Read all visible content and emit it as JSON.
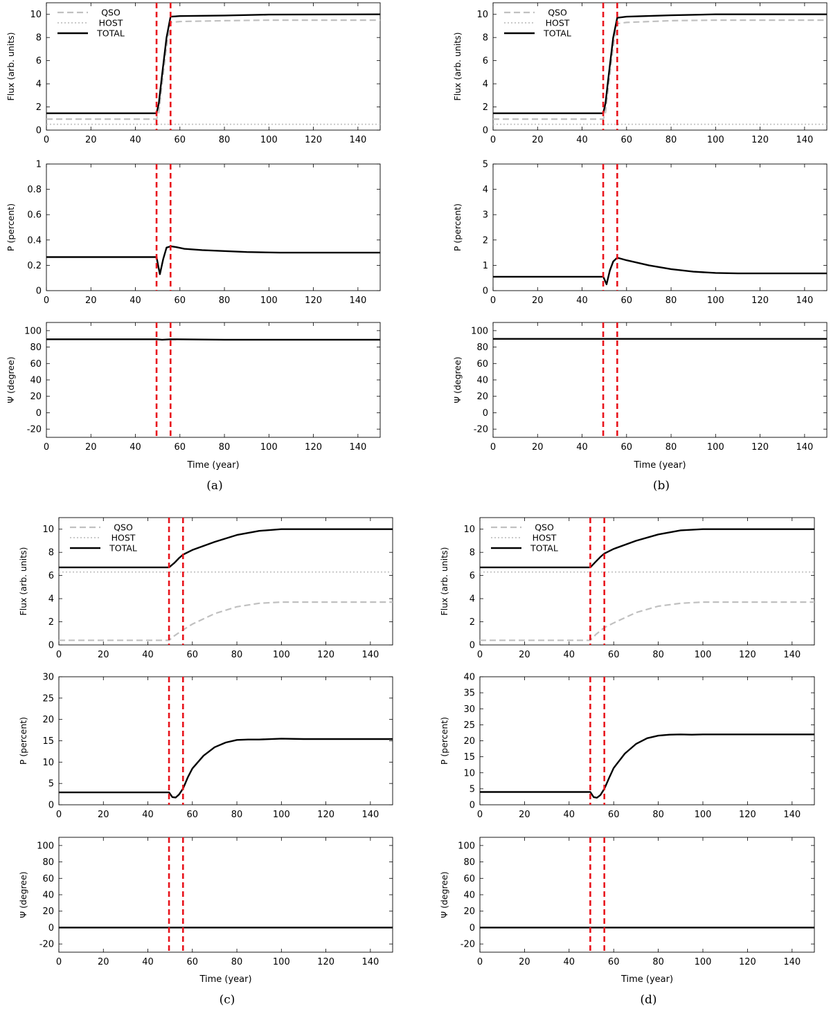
{
  "colors": {
    "total": "#000000",
    "qso": "#c0c0c0",
    "host": "#c0c0c0",
    "markers": "#e8141c",
    "axis": "#000000"
  },
  "chart_data": [
    {
      "id": "a",
      "type": "line",
      "label": "(a)",
      "xlabel": "Time (year)",
      "xlim": [
        0,
        150
      ],
      "xticks": [
        0,
        20,
        40,
        60,
        80,
        100,
        120,
        140
      ],
      "event_markers_x": [
        49.5,
        55.8
      ],
      "panels": [
        {
          "ylabel": "Flux (arb. units)",
          "ylim": [
            0,
            11
          ],
          "yticks": [
            0,
            2,
            4,
            6,
            8,
            10
          ],
          "legend": {
            "position": "top-left",
            "entries": [
              "QSO",
              "HOST",
              "TOTAL"
            ]
          },
          "series": [
            {
              "name": "QSO",
              "style": "dashed",
              "x": [
                0,
                49.5,
                50.5,
                52,
                54,
                55.8,
                60,
                80,
                100,
                150
              ],
              "y": [
                0.95,
                0.95,
                1.5,
                4,
                7.2,
                9.3,
                9.38,
                9.45,
                9.5,
                9.5
              ]
            },
            {
              "name": "HOST",
              "style": "dotted",
              "x": [
                0,
                150
              ],
              "y": [
                0.5,
                0.5
              ]
            },
            {
              "name": "TOTAL",
              "style": "solid",
              "x": [
                0,
                49.5,
                50.5,
                52,
                54,
                55.8,
                60,
                80,
                100,
                150
              ],
              "y": [
                1.45,
                1.45,
                2.3,
                4.8,
                8,
                9.8,
                9.85,
                9.9,
                9.98,
                10
              ]
            }
          ]
        },
        {
          "ylabel": "P (percent)",
          "ylim": [
            0,
            1
          ],
          "yticks": [
            0,
            0.2,
            0.4,
            0.6,
            0.8,
            1
          ],
          "series": [
            {
              "name": "TOTAL",
              "style": "solid",
              "x": [
                0,
                49.5,
                50.2,
                51,
                52.5,
                54,
                56,
                58,
                62,
                70,
                90,
                105,
                150
              ],
              "y": [
                0.265,
                0.265,
                0.2,
                0.13,
                0.25,
                0.34,
                0.35,
                0.345,
                0.33,
                0.32,
                0.305,
                0.3,
                0.3
              ]
            }
          ]
        },
        {
          "ylabel": "Ψ (degree)",
          "ylim": [
            -30,
            110
          ],
          "yticks": [
            -20,
            0,
            20,
            40,
            60,
            80,
            100
          ],
          "series": [
            {
              "name": "TOTAL",
              "style": "solid",
              "x": [
                0,
                49.5,
                52,
                55.8,
                80,
                150
              ],
              "y": [
                89.5,
                89.5,
                89,
                89.5,
                89,
                89
              ]
            }
          ]
        }
      ]
    },
    {
      "id": "b",
      "type": "line",
      "label": "(b)",
      "xlabel": "Time (year)",
      "xlim": [
        0,
        150
      ],
      "xticks": [
        0,
        20,
        40,
        60,
        80,
        100,
        120,
        140
      ],
      "event_markers_x": [
        49.5,
        55.8
      ],
      "panels": [
        {
          "ylabel": "Flux (arb. units)",
          "ylim": [
            0,
            11
          ],
          "yticks": [
            0,
            2,
            4,
            6,
            8,
            10
          ],
          "legend": {
            "position": "top-left",
            "entries": [
              "QSO",
              "HOST",
              "TOTAL"
            ]
          },
          "series": [
            {
              "name": "QSO",
              "style": "dashed",
              "x": [
                0,
                49.5,
                50.5,
                52,
                54,
                55.8,
                60,
                80,
                100,
                150
              ],
              "y": [
                0.95,
                0.95,
                1.5,
                4,
                7.2,
                9.2,
                9.3,
                9.45,
                9.5,
                9.5
              ]
            },
            {
              "name": "HOST",
              "style": "dotted",
              "x": [
                0,
                150
              ],
              "y": [
                0.5,
                0.5
              ]
            },
            {
              "name": "TOTAL",
              "style": "solid",
              "x": [
                0,
                49.5,
                50.5,
                52,
                54,
                55.8,
                60,
                80,
                100,
                150
              ],
              "y": [
                1.45,
                1.45,
                2.3,
                4.8,
                8,
                9.7,
                9.8,
                9.92,
                10,
                10
              ]
            }
          ]
        },
        {
          "ylabel": "P (percent)",
          "ylim": [
            0,
            5
          ],
          "yticks": [
            0,
            1,
            2,
            3,
            4,
            5
          ],
          "series": [
            {
              "name": "TOTAL",
              "style": "solid",
              "x": [
                0,
                49.5,
                50.3,
                51,
                52.5,
                54,
                55.8,
                60,
                70,
                80,
                90,
                100,
                110,
                150
              ],
              "y": [
                0.55,
                0.55,
                0.4,
                0.25,
                0.8,
                1.15,
                1.3,
                1.2,
                1.0,
                0.85,
                0.75,
                0.7,
                0.68,
                0.68
              ]
            }
          ]
        },
        {
          "ylabel": "Ψ (degree)",
          "ylim": [
            -30,
            110
          ],
          "yticks": [
            -20,
            0,
            20,
            40,
            60,
            80,
            100
          ],
          "series": [
            {
              "name": "TOTAL",
              "style": "solid",
              "x": [
                0,
                150
              ],
              "y": [
                90,
                90
              ]
            }
          ]
        }
      ]
    },
    {
      "id": "c",
      "type": "line",
      "label": "(c)",
      "xlabel": "Time (year)",
      "xlim": [
        0,
        150
      ],
      "xticks": [
        0,
        20,
        40,
        60,
        80,
        100,
        120,
        140
      ],
      "event_markers_x": [
        49.5,
        55.8
      ],
      "panels": [
        {
          "ylabel": "Flux (arb. units)",
          "ylim": [
            0,
            11
          ],
          "yticks": [
            0,
            2,
            4,
            6,
            8,
            10
          ],
          "legend": {
            "position": "top-left",
            "entries": [
              "QSO",
              "HOST",
              "TOTAL"
            ]
          },
          "series": [
            {
              "name": "QSO",
              "style": "dashed",
              "x": [
                0,
                49.5,
                52,
                55.8,
                60,
                70,
                80,
                90,
                100,
                150
              ],
              "y": [
                0.4,
                0.4,
                0.8,
                1.3,
                1.8,
                2.7,
                3.3,
                3.6,
                3.7,
                3.7
              ]
            },
            {
              "name": "HOST",
              "style": "dotted",
              "x": [
                0,
                150
              ],
              "y": [
                6.3,
                6.3
              ]
            },
            {
              "name": "TOTAL",
              "style": "solid",
              "x": [
                0,
                49.5,
                52,
                54,
                55.8,
                60,
                70,
                80,
                90,
                100,
                150
              ],
              "y": [
                6.7,
                6.7,
                7.1,
                7.5,
                7.8,
                8.2,
                8.9,
                9.5,
                9.85,
                10,
                10
              ]
            }
          ]
        },
        {
          "ylabel": "P (percent)",
          "ylim": [
            0,
            30
          ],
          "yticks": [
            0,
            5,
            10,
            15,
            20,
            25,
            30
          ],
          "series": [
            {
              "name": "TOTAL",
              "style": "solid",
              "x": [
                0,
                49.5,
                51,
                52.5,
                54,
                55.8,
                58,
                60,
                65,
                70,
                75,
                80,
                85,
                90,
                100,
                110,
                150
              ],
              "y": [
                2.9,
                2.9,
                1.8,
                1.7,
                2.4,
                3.8,
                6.5,
                8.5,
                11.5,
                13.5,
                14.6,
                15.2,
                15.3,
                15.3,
                15.5,
                15.4,
                15.4
              ]
            }
          ]
        },
        {
          "ylabel": "Ψ (degree)",
          "ylim": [
            -30,
            110
          ],
          "yticks": [
            -20,
            0,
            20,
            40,
            60,
            80,
            100
          ],
          "series": [
            {
              "name": "TOTAL",
              "style": "solid",
              "x": [
                0,
                150
              ],
              "y": [
                0,
                0
              ]
            }
          ]
        }
      ]
    },
    {
      "id": "d",
      "type": "line",
      "label": "(d)",
      "xlabel": "Time (year)",
      "xlim": [
        0,
        150
      ],
      "xticks": [
        0,
        20,
        40,
        60,
        80,
        100,
        120,
        140
      ],
      "event_markers_x": [
        49.5,
        55.8
      ],
      "panels": [
        {
          "ylabel": "Flux (arb. units)",
          "ylim": [
            0,
            11
          ],
          "yticks": [
            0,
            2,
            4,
            6,
            8,
            10
          ],
          "legend": {
            "position": "top-left",
            "entries": [
              "QSO",
              "HOST",
              "TOTAL"
            ]
          },
          "series": [
            {
              "name": "QSO",
              "style": "dashed",
              "x": [
                0,
                49.5,
                52,
                55.8,
                60,
                70,
                80,
                90,
                100,
                150
              ],
              "y": [
                0.4,
                0.4,
                0.9,
                1.5,
                1.9,
                2.8,
                3.35,
                3.6,
                3.7,
                3.7
              ]
            },
            {
              "name": "HOST",
              "style": "dotted",
              "x": [
                0,
                150
              ],
              "y": [
                6.3,
                6.3
              ]
            },
            {
              "name": "TOTAL",
              "style": "solid",
              "x": [
                0,
                49.5,
                52,
                54,
                55.8,
                60,
                70,
                80,
                90,
                100,
                150
              ],
              "y": [
                6.7,
                6.7,
                7.2,
                7.6,
                7.9,
                8.3,
                9.0,
                9.55,
                9.9,
                10,
                10
              ]
            }
          ]
        },
        {
          "ylabel": "P (percent)",
          "ylim": [
            0,
            40
          ],
          "yticks": [
            0,
            5,
            10,
            15,
            20,
            25,
            30,
            35,
            40
          ],
          "series": [
            {
              "name": "TOTAL",
              "style": "solid",
              "x": [
                0,
                49.5,
                51,
                52.5,
                54,
                55.8,
                58,
                60,
                65,
                70,
                75,
                80,
                85,
                90,
                95,
                100,
                150
              ],
              "y": [
                4,
                4,
                2.4,
                2.2,
                3,
                5,
                8.5,
                11.5,
                16,
                19,
                20.8,
                21.6,
                21.9,
                22,
                21.9,
                22,
                22
              ]
            }
          ]
        },
        {
          "ylabel": "Ψ (degree)",
          "ylim": [
            -30,
            110
          ],
          "yticks": [
            -20,
            0,
            20,
            40,
            60,
            80,
            100
          ],
          "series": [
            {
              "name": "TOTAL",
              "style": "solid",
              "x": [
                0,
                150
              ],
              "y": [
                0,
                0
              ]
            }
          ]
        }
      ]
    }
  ]
}
